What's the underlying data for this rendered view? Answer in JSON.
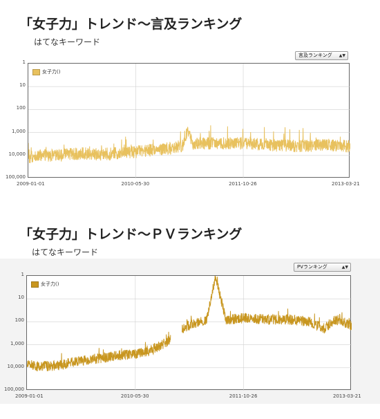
{
  "charts": [
    {
      "title": "「女子力」トレンド〜言及ランキング",
      "subtitle": "はてなキーワード",
      "dropdown": "言及ランキング",
      "legend": "女子力()",
      "color": "#e8c15e"
    },
    {
      "title": "「女子力」トレンド〜ＰＶランキング",
      "subtitle": "はてなキーワード",
      "dropdown": "PVランキング",
      "legend": "女子力()",
      "color": "#c8961f"
    }
  ],
  "chart_data": [
    {
      "type": "line",
      "title": "「女子力」トレンド〜言及ランキング",
      "xlabel": "",
      "ylabel": "",
      "y_scale": "log",
      "y_inverted": true,
      "ylim": [
        1,
        100000
      ],
      "y_ticks": [
        "1",
        "10",
        "100",
        "1,000",
        "10,000",
        "100,000"
      ],
      "x_ticks": [
        "2009-01-01",
        "2010-05-30",
        "2011-10-26",
        "2013-03-21"
      ],
      "xlim": [
        "2009-01-01",
        "2013-03-21"
      ],
      "grid": true,
      "legend_position": "top-left",
      "series": [
        {
          "name": "女子力()",
          "points": [
            [
              "2009-01-01",
              12000
            ],
            [
              "2009-03-01",
              10000
            ],
            [
              "2009-06-01",
              10000
            ],
            [
              "2009-09-01",
              8000
            ],
            [
              "2009-12-01",
              9000
            ],
            [
              "2010-03-01",
              8000
            ],
            [
              "2010-05-30",
              7000
            ],
            [
              "2010-08-01",
              6000
            ],
            [
              "2010-11-01",
              5000
            ],
            [
              "2011-01-15",
              3500
            ],
            [
              "2011-02-01",
              800
            ],
            [
              "2011-03-01",
              3000
            ],
            [
              "2011-06-01",
              3000
            ],
            [
              "2011-10-26",
              3000
            ],
            [
              "2012-03-01",
              3500
            ],
            [
              "2012-08-01",
              4000
            ],
            [
              "2012-12-01",
              3500
            ],
            [
              "2013-03-21",
              4000
            ]
          ]
        }
      ]
    },
    {
      "type": "line",
      "title": "「女子力」トレンド〜ＰＶランキング",
      "xlabel": "",
      "ylabel": "",
      "y_scale": "log",
      "y_inverted": true,
      "ylim": [
        1,
        100000
      ],
      "y_ticks": [
        "1",
        "10",
        "100",
        "1,000",
        "10,000",
        "100,000"
      ],
      "x_ticks": [
        "2009-01-01",
        "2010-05-30",
        "2011-10-26",
        "2013-03-21"
      ],
      "xlim": [
        "2009-01-01",
        "2013-03-21"
      ],
      "grid": true,
      "legend_position": "top-left",
      "series": [
        {
          "name": "女子力()",
          "points": [
            [
              "2009-01-01",
              7000
            ],
            [
              "2009-03-01",
              9000
            ],
            [
              "2009-06-01",
              8000
            ],
            [
              "2009-09-01",
              5000
            ],
            [
              "2009-12-01",
              4000
            ],
            [
              "2010-03-01",
              3000
            ],
            [
              "2010-05-30",
              2500
            ],
            [
              "2010-08-01",
              2000
            ],
            [
              "2010-10-01",
              1000
            ],
            [
              "2010-11-05",
              700
            ],
            [
              "2010-12-10",
              300
            ],
            [
              "2011-01-01",
              250
            ],
            [
              "2011-02-01",
              150
            ],
            [
              "2011-05-01",
              90
            ],
            [
              "2011-06-15",
              1
            ],
            [
              "2011-08-01",
              80
            ],
            [
              "2011-10-26",
              70
            ],
            [
              "2012-03-01",
              80
            ],
            [
              "2012-06-01",
              80
            ],
            [
              "2012-09-01",
              100
            ],
            [
              "2012-11-15",
              200
            ],
            [
              "2012-12-15",
              100
            ],
            [
              "2013-01-20",
              80
            ],
            [
              "2013-03-21",
              150
            ]
          ]
        }
      ]
    }
  ]
}
